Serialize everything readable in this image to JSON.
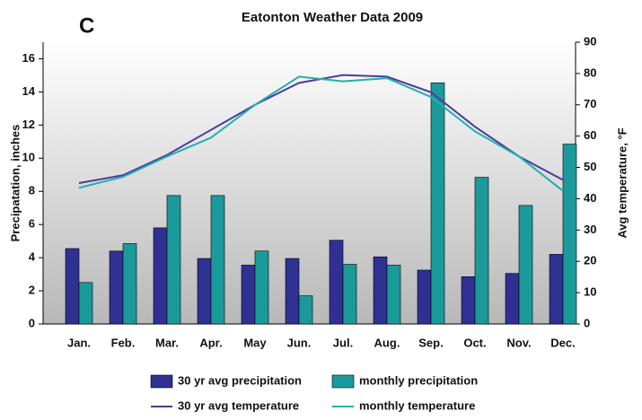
{
  "chart_data": {
    "type": "combo",
    "title": "Eatonton Weather Data 2009",
    "label": "C",
    "y_label": "Precipatation, inches",
    "y2_label": "Avg temperature, °F",
    "categories": [
      "Jan.",
      "Feb.",
      "Mar.",
      "Apr.",
      "May",
      "Jun.",
      "Jul.",
      "Aug.",
      "Sep.",
      "Oct.",
      "Nov.",
      "Dec."
    ],
    "ylim": [
      0,
      17
    ],
    "yticks": [
      0,
      2,
      4,
      6,
      8,
      10,
      12,
      14,
      16
    ],
    "y2lim": [
      0,
      90
    ],
    "y2ticks": [
      0,
      10,
      20,
      30,
      40,
      50,
      60,
      70,
      80,
      90
    ],
    "series": [
      {
        "name": "30 yr avg precipitation",
        "type": "bar",
        "color": "#2e3192",
        "values": [
          4.55,
          4.4,
          5.8,
          3.95,
          3.55,
          3.95,
          5.05,
          4.05,
          3.25,
          2.85,
          3.05,
          4.2
        ]
      },
      {
        "name": "monthly precipitation",
        "type": "bar",
        "color": "#1a9a9a",
        "values": [
          2.5,
          4.85,
          7.75,
          7.75,
          4.4,
          1.7,
          3.6,
          3.55,
          14.55,
          8.85,
          7.15,
          10.85
        ]
      },
      {
        "name": "30 yr avg temperature",
        "type": "line",
        "axis": "y2",
        "color": "#4b3aa0",
        "values": [
          45,
          47.5,
          54,
          62,
          70,
          77,
          79.5,
          79,
          74,
          63,
          53.5,
          46
        ]
      },
      {
        "name": "monthly temperature",
        "type": "line",
        "axis": "y2",
        "color": "#20b0ac",
        "values": [
          43.5,
          47,
          53.5,
          59.5,
          70,
          79,
          77.5,
          78.5,
          72.5,
          61.5,
          53.5,
          42.5
        ]
      }
    ]
  }
}
